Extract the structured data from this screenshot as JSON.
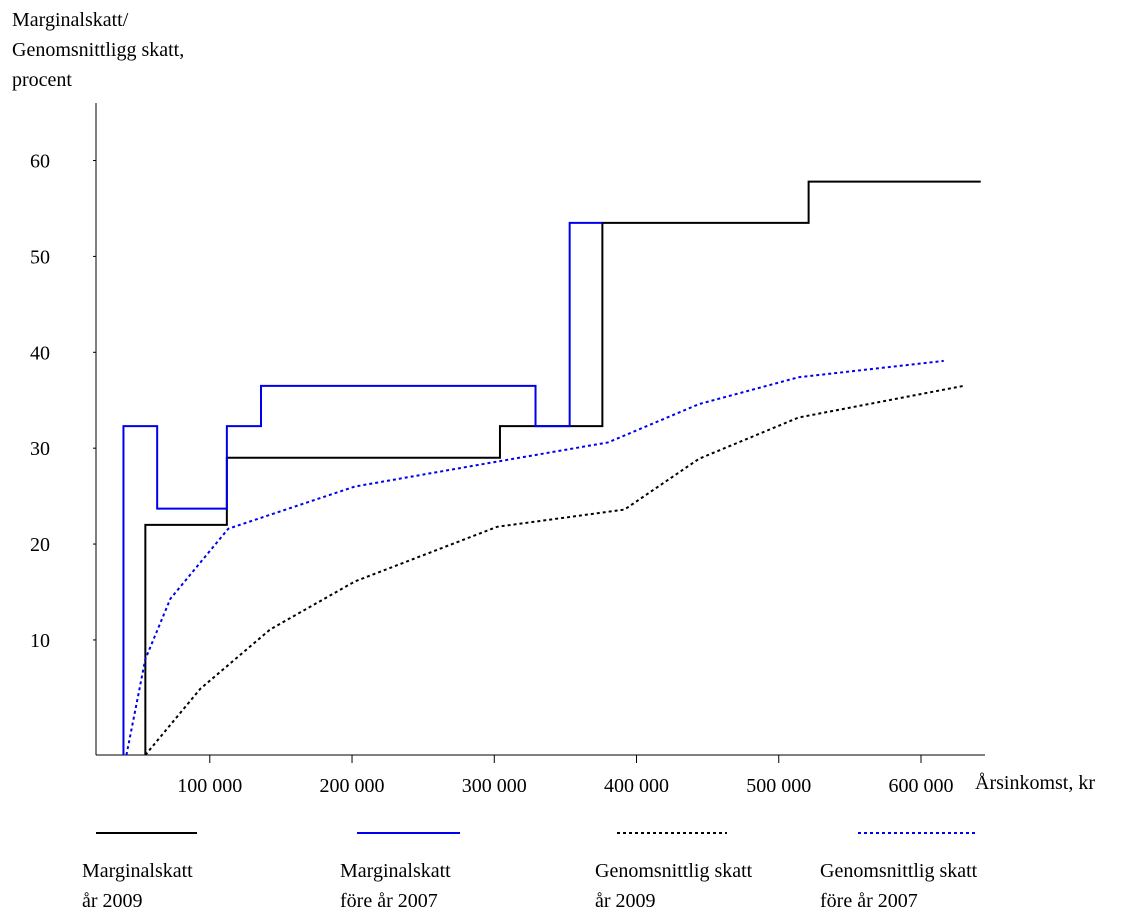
{
  "chart_data": {
    "type": "line",
    "ylabel": "Marginalskatt/\nGenomsnittligg skatt,\nprocent",
    "xlabel": "Årsinkomst, kr",
    "xlim": [
      20000,
      645000
    ],
    "ylim": [
      -2,
      66
    ],
    "xticks": [
      {
        "value": 100000,
        "label": "100 000"
      },
      {
        "value": 200000,
        "label": "200 000"
      },
      {
        "value": 300000,
        "label": "300 000"
      },
      {
        "value": 400000,
        "label": "400 000"
      },
      {
        "value": 500000,
        "label": "500 000"
      },
      {
        "value": 600000,
        "label": "600 000"
      }
    ],
    "yticks": [
      10,
      20,
      30,
      40,
      50,
      60
    ],
    "series": [
      {
        "name": "Marginalskatt\når 2009",
        "color": "#000000",
        "dashed": false,
        "x": [
          54700,
          54700,
          112000,
          112000,
          304000,
          304000,
          376000,
          376000,
          521000,
          521000,
          642000
        ],
        "values": [
          -2,
          22,
          22,
          29,
          29,
          32.3,
          32.3,
          53.5,
          53.5,
          57.8,
          57.8
        ]
      },
      {
        "name": "Marginalskatt\nföre år 2007",
        "color": "#0000ee",
        "dashed": false,
        "x": [
          39300,
          39300,
          63000,
          63000,
          112000,
          112000,
          136000,
          136000,
          329000,
          329000,
          353000,
          353000,
          376000
        ],
        "values": [
          -2,
          32.3,
          32.3,
          23.7,
          23.7,
          32.3,
          32.3,
          36.5,
          36.5,
          32.3,
          32.3,
          53.5,
          53.5
        ]
      },
      {
        "name": "Genomsnittlig skatt\når 2009",
        "color": "#000000",
        "dashed": true,
        "x": [
          54700,
          93300,
          142500,
          202000,
          302000,
          391600,
          444000,
          514000,
          630000
        ],
        "values": [
          -2,
          4.9,
          11.1,
          16.1,
          21.8,
          23.6,
          28.9,
          33.2,
          36.5
        ]
      },
      {
        "name": "Genomsnittlig skatt\nföre år 2007",
        "color": "#0000ee",
        "dashed": true,
        "x": [
          41400,
          54700,
          72300,
          113000,
          202000,
          302000,
          380000,
          444000,
          514000,
          616000
        ],
        "values": [
          -2,
          8.0,
          14.3,
          21.6,
          26.0,
          28.6,
          30.6,
          34.6,
          37.4,
          39.1
        ]
      }
    ]
  }
}
